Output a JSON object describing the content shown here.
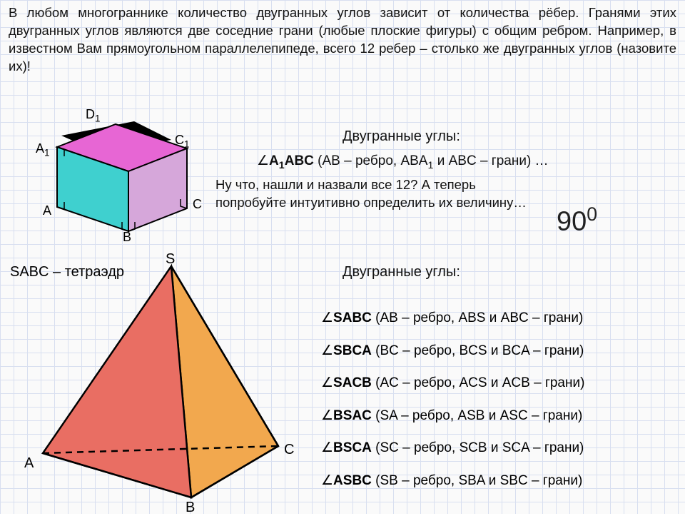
{
  "intro": "В любом многограннике количество двугранных углов зависит от количества рёбер. Гранями этих двугранных углов являются две соседние грани (любые плоские фигуры) с общим ребром. Например, в известном Вам прямоугольном параллелепипеде, всего 12 ребер – столько же двугранных углов (назовите их)!",
  "cube": {
    "labels": {
      "A": "A",
      "B": "B",
      "C": "C",
      "A1": "A",
      "C1": "C",
      "D1": "D"
    },
    "sub1": "1",
    "colors": {
      "top": "#e766d4",
      "front": "#3fd0cf",
      "right": "#d6a7da",
      "hidden_stroke": "#888888",
      "stroke": "#000000"
    },
    "section_title": "Двугранные углы:",
    "angle_example_html": "<span class=\"sym\">∠</span><b>A<span class=\"sub\">1</span>ABC</b> (AB – ребро, ABA<span class=\"sub\">1</span> и ABC – грани) …",
    "question": "Ну что, нашли и назвали все 12? А теперь попробуйте интуитивно определить их величину…",
    "ninety_val": "90",
    "ninety_sup": "0"
  },
  "tetra": {
    "name": "SABC – тетраэдр",
    "labels": {
      "S": "S",
      "A": "A",
      "B": "B",
      "C": "C"
    },
    "colors": {
      "face_sab": "#e96e63",
      "face_sbc": "#f2a84e",
      "face_abc": "#f5e95a",
      "stroke": "#000000"
    },
    "section_title": "Двугранные углы:",
    "angles": [
      "<span class=\"sym\">∠</span><b>SABC</b> (AB – ребро, ABS и ABC – грани)",
      "<span class=\"sym\">∠</span><b>SBCA</b> (BC – ребро, BCS и BCA – грани)",
      "<span class=\"sym\">∠</span><b>SACB</b> (AC – ребро, ACS и ACB – грани)",
      "<span class=\"sym\">∠</span><b>BSAC</b> (SA – ребро, ASB и ASC – грани)",
      "<span class=\"sym\">∠</span><b>BSCA</b> (SC – ребро, SCB и SCA – грани)",
      "<span class=\"sym\">∠</span><b>ASBC</b> (SB – ребро, SBA и SBC – грани)"
    ]
  }
}
